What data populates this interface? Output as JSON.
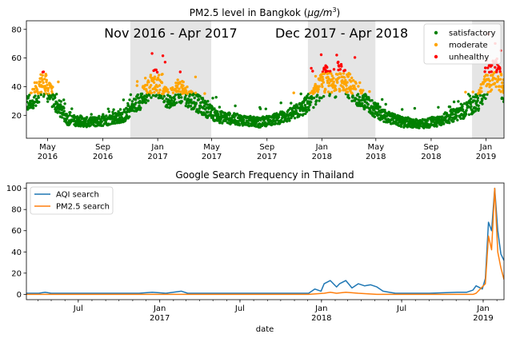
{
  "colors": {
    "satisfactory": "#008000",
    "moderate": "#ffa500",
    "unhealthy": "#ff0000",
    "aqi_search": "#1f77b4",
    "pm25_search": "#ff7f0e",
    "shade": "#e5e5e5"
  },
  "chart_data": [
    {
      "type": "scatter",
      "title_prefix": "PM2.5 level in Bangkok (",
      "title_unit": "μg/m",
      "title_exp": "3",
      "title_suffix": ")",
      "x_range": [
        "2016-03-15",
        "2019-02-10"
      ],
      "ylim": [
        4,
        86
      ],
      "yticks": [
        20,
        40,
        60,
        80
      ],
      "xticks": [
        {
          "date": "2016-05-01",
          "label": "May",
          "sub": "2016"
        },
        {
          "date": "2016-09-01",
          "label": "Sep",
          "sub": "2016"
        },
        {
          "date": "2017-01-01",
          "label": "Jan",
          "sub": "2017"
        },
        {
          "date": "2017-05-01",
          "label": "May",
          "sub": "2017"
        },
        {
          "date": "2017-09-01",
          "label": "Sep",
          "sub": "2017"
        },
        {
          "date": "2018-01-01",
          "label": "Jan",
          "sub": "2018"
        },
        {
          "date": "2018-05-01",
          "label": "May",
          "sub": "2018"
        },
        {
          "date": "2018-09-01",
          "label": "Sep",
          "sub": "2018"
        },
        {
          "date": "2019-01-01",
          "label": "Jan",
          "sub": "2019"
        }
      ],
      "thresholds": {
        "moderate": 35,
        "unhealthy": 50
      },
      "shaded_periods": [
        {
          "start": "2016-11-01",
          "end": "2017-04-30",
          "label": "Nov 2016 - Apr 2017"
        },
        {
          "start": "2017-12-01",
          "end": "2018-04-30",
          "label": "Dec 2017 - Apr 2018"
        },
        {
          "start": "2018-12-01",
          "end": "2019-02-10",
          "label": ""
        }
      ],
      "legend": {
        "placement": "top-right",
        "entries": [
          "satisfactory",
          "moderate",
          "unhealthy"
        ]
      },
      "series_anchors": [
        [
          "2016-03-15",
          27
        ],
        [
          "2016-04-10",
          36
        ],
        [
          "2016-04-20",
          44
        ],
        [
          "2016-05-15",
          30
        ],
        [
          "2016-06-15",
          17
        ],
        [
          "2016-08-01",
          15
        ],
        [
          "2016-09-15",
          17
        ],
        [
          "2016-10-20",
          20
        ],
        [
          "2016-11-15",
          28
        ],
        [
          "2016-12-10",
          37
        ],
        [
          "2016-12-25",
          44
        ],
        [
          "2017-01-10",
          38
        ],
        [
          "2017-01-25",
          30
        ],
        [
          "2017-02-15",
          38
        ],
        [
          "2017-03-10",
          33
        ],
        [
          "2017-04-15",
          25
        ],
        [
          "2017-05-15",
          19
        ],
        [
          "2017-07-01",
          17
        ],
        [
          "2017-08-15",
          15
        ],
        [
          "2017-09-15",
          17
        ],
        [
          "2017-10-20",
          20
        ],
        [
          "2017-11-20",
          25
        ],
        [
          "2017-12-15",
          33
        ],
        [
          "2018-01-10",
          45
        ],
        [
          "2018-01-25",
          40
        ],
        [
          "2018-02-15",
          47
        ],
        [
          "2018-03-10",
          38
        ],
        [
          "2018-04-15",
          27
        ],
        [
          "2018-05-15",
          20
        ],
        [
          "2018-07-01",
          15
        ],
        [
          "2018-08-15",
          14
        ],
        [
          "2018-09-15",
          16
        ],
        [
          "2018-10-20",
          20
        ],
        [
          "2018-11-20",
          24
        ],
        [
          "2018-12-15",
          30
        ],
        [
          "2019-01-10",
          47
        ],
        [
          "2019-01-25",
          50
        ],
        [
          "2019-02-10",
          36
        ]
      ]
    },
    {
      "type": "line",
      "title": "Google Search Frequency in Thailand",
      "xlabel": "date",
      "x_range": [
        "2016-03-06",
        "2019-02-17"
      ],
      "ylim": [
        -5,
        105
      ],
      "yticks": [
        0,
        20,
        40,
        60,
        80,
        100
      ],
      "xticks": [
        {
          "date": "2016-07-01",
          "label": "Jul",
          "sub": ""
        },
        {
          "date": "2017-01-01",
          "label": "Jan",
          "sub": "2017"
        },
        {
          "date": "2017-07-01",
          "label": "Jul",
          "sub": ""
        },
        {
          "date": "2018-01-01",
          "label": "Jan",
          "sub": "2018"
        },
        {
          "date": "2018-07-01",
          "label": "Jul",
          "sub": ""
        },
        {
          "date": "2019-01-01",
          "label": "Jan",
          "sub": "2019"
        }
      ],
      "legend": {
        "placement": "top-left"
      },
      "series": [
        {
          "name": "AQI search",
          "points": [
            [
              "2016-03-06",
              1
            ],
            [
              "2016-04-03",
              1
            ],
            [
              "2016-04-17",
              2
            ],
            [
              "2016-05-01",
              1
            ],
            [
              "2016-06-01",
              1
            ],
            [
              "2016-09-01",
              1
            ],
            [
              "2016-11-15",
              1
            ],
            [
              "2016-12-15",
              2
            ],
            [
              "2017-01-15",
              1
            ],
            [
              "2017-02-19",
              3
            ],
            [
              "2017-03-05",
              1
            ],
            [
              "2017-06-01",
              1
            ],
            [
              "2017-10-01",
              1
            ],
            [
              "2017-12-03",
              1
            ],
            [
              "2017-12-17",
              5
            ],
            [
              "2017-12-31",
              3
            ],
            [
              "2018-01-07",
              10
            ],
            [
              "2018-01-21",
              13
            ],
            [
              "2018-02-04",
              7
            ],
            [
              "2018-02-11",
              10
            ],
            [
              "2018-02-25",
              13
            ],
            [
              "2018-03-11",
              6
            ],
            [
              "2018-03-25",
              10
            ],
            [
              "2018-04-08",
              8
            ],
            [
              "2018-04-22",
              9
            ],
            [
              "2018-05-06",
              7
            ],
            [
              "2018-05-20",
              3
            ],
            [
              "2018-06-03",
              2
            ],
            [
              "2018-06-17",
              1
            ],
            [
              "2018-09-01",
              1
            ],
            [
              "2018-11-04",
              2
            ],
            [
              "2018-11-25",
              2
            ],
            [
              "2018-12-09",
              4
            ],
            [
              "2018-12-16",
              8
            ],
            [
              "2018-12-30",
              5
            ],
            [
              "2019-01-06",
              15
            ],
            [
              "2019-01-13",
              68
            ],
            [
              "2019-01-20",
              60
            ],
            [
              "2019-01-27",
              100
            ],
            [
              "2019-02-03",
              60
            ],
            [
              "2019-02-10",
              38
            ],
            [
              "2019-02-17",
              32
            ]
          ]
        },
        {
          "name": "PM2.5 search",
          "points": [
            [
              "2016-03-06",
              0
            ],
            [
              "2017-12-03",
              0
            ],
            [
              "2018-01-07",
              1
            ],
            [
              "2018-01-21",
              2
            ],
            [
              "2018-02-04",
              1
            ],
            [
              "2018-02-25",
              2
            ],
            [
              "2018-03-25",
              1
            ],
            [
              "2018-05-06",
              0
            ],
            [
              "2018-12-09",
              0
            ],
            [
              "2018-12-16",
              1
            ],
            [
              "2019-01-06",
              10
            ],
            [
              "2019-01-13",
              55
            ],
            [
              "2019-01-20",
              42
            ],
            [
              "2019-01-27",
              100
            ],
            [
              "2019-02-03",
              40
            ],
            [
              "2019-02-10",
              25
            ],
            [
              "2019-02-17",
              14
            ]
          ]
        }
      ]
    }
  ]
}
